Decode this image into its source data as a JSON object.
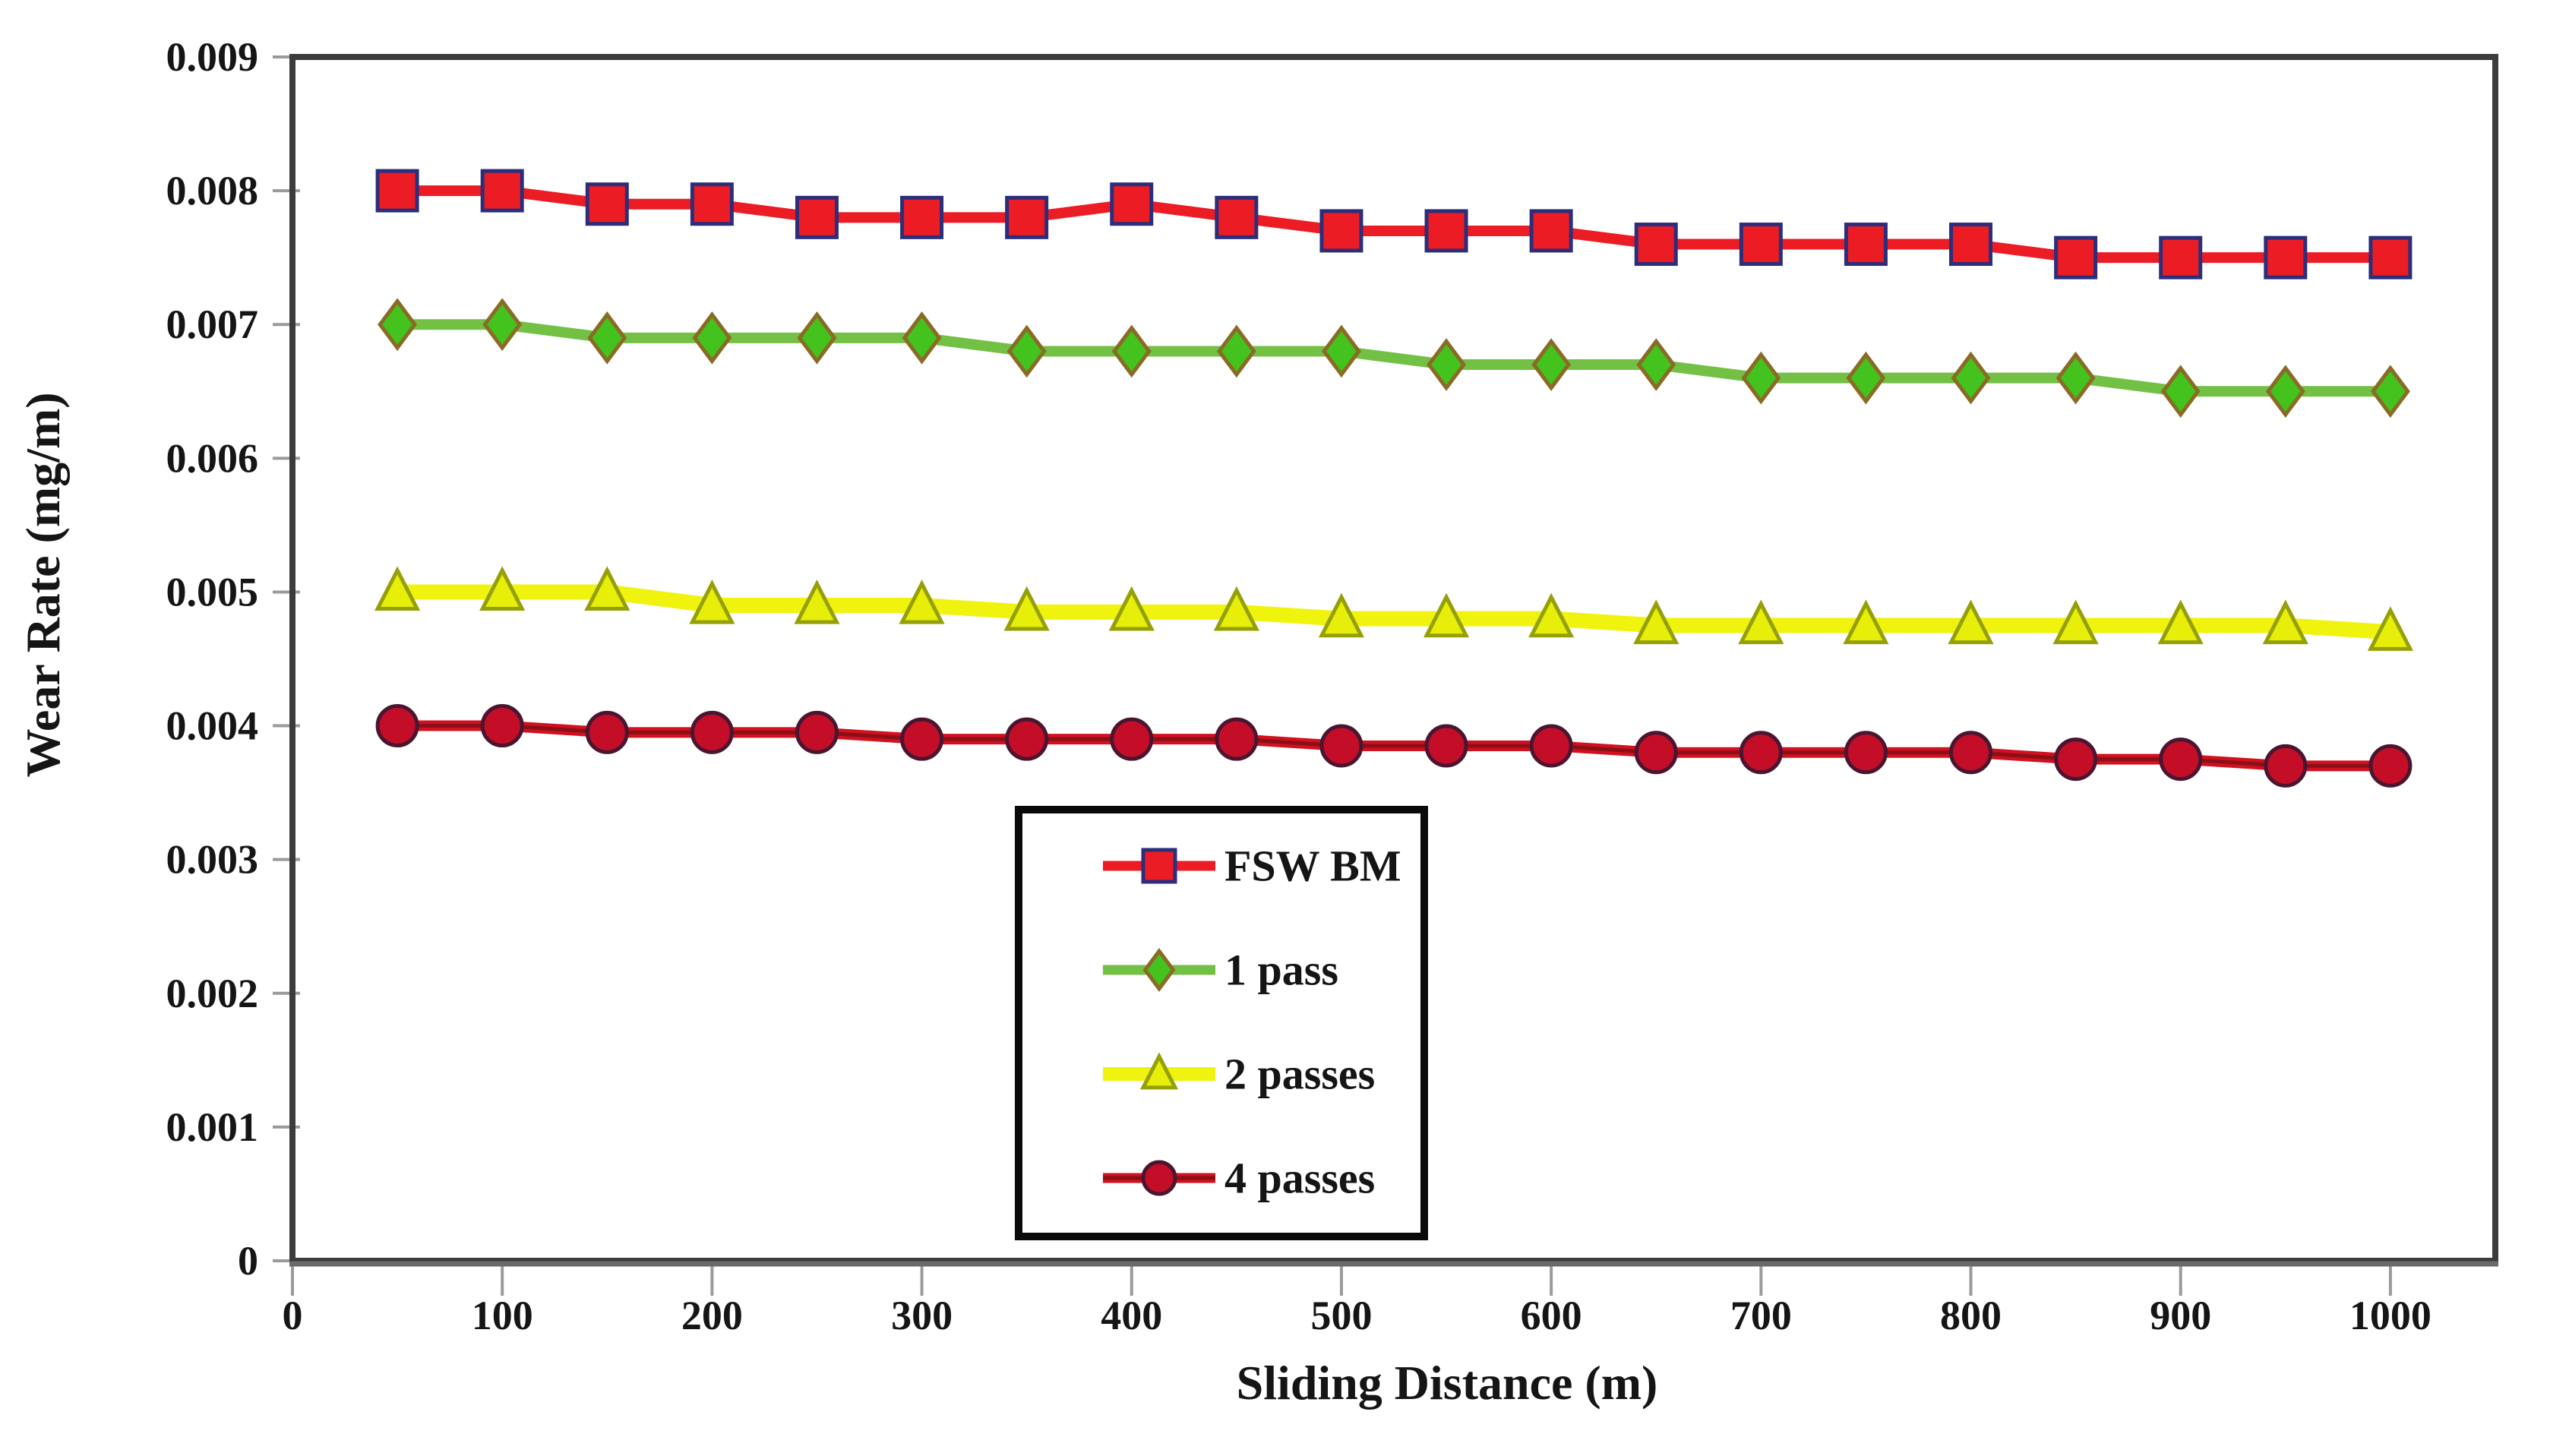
{
  "chart_data": {
    "type": "line",
    "title": "",
    "xlabel": "Sliding Distance (m)",
    "ylabel": "Wear Rate (mg/m)",
    "xlim": [
      0,
      1050
    ],
    "ylim": [
      0,
      0.009
    ],
    "xticks": [
      0,
      100,
      200,
      300,
      400,
      500,
      600,
      700,
      800,
      900,
      1000
    ],
    "yticks": [
      0,
      0.001,
      0.002,
      0.003,
      0.004,
      0.005,
      0.006,
      0.007,
      0.008,
      0.009
    ],
    "ytick_labels": [
      "0",
      "0.001",
      "0.002",
      "0.003",
      "0.004",
      "0.005",
      "0.006",
      "0.007",
      "0.008",
      "0.009"
    ],
    "grid": false,
    "legend_position": "inside-bottom-center",
    "legend_border": true,
    "x": [
      50,
      100,
      150,
      200,
      250,
      300,
      350,
      400,
      450,
      500,
      550,
      600,
      650,
      700,
      750,
      800,
      850,
      900,
      950,
      1000
    ],
    "series": [
      {
        "name": "FSW BM",
        "marker": "square",
        "line_color": "#EC1C24",
        "marker_fill": "#EC1C24",
        "marker_edge": "#2B2E7A",
        "values": [
          0.008,
          0.008,
          0.0079,
          0.0079,
          0.0078,
          0.0078,
          0.0078,
          0.0079,
          0.0078,
          0.0077,
          0.0077,
          0.0077,
          0.0076,
          0.0076,
          0.0076,
          0.0076,
          0.0075,
          0.0075,
          0.0075,
          0.0075
        ]
      },
      {
        "name": "1 pass",
        "marker": "diamond",
        "line_color": "#72C144",
        "marker_fill": "#44C21E",
        "marker_edge": "#8A6B25",
        "values": [
          0.007,
          0.007,
          0.0069,
          0.0069,
          0.0069,
          0.0069,
          0.0068,
          0.0068,
          0.0068,
          0.0068,
          0.0067,
          0.0067,
          0.0067,
          0.0066,
          0.0066,
          0.0066,
          0.0066,
          0.0065,
          0.0065,
          0.0065
        ]
      },
      {
        "name": "2 passes",
        "marker": "triangle",
        "line_color": "#F0F30D",
        "marker_fill": "#E7EE09",
        "marker_edge": "#95A007",
        "values": [
          0.005,
          0.005,
          0.005,
          0.0049,
          0.0049,
          0.0049,
          0.00485,
          0.00485,
          0.00485,
          0.0048,
          0.0048,
          0.0048,
          0.00475,
          0.00475,
          0.00475,
          0.00475,
          0.00475,
          0.00475,
          0.00475,
          0.0047
        ]
      },
      {
        "name": "4 passes",
        "marker": "circle",
        "line_color": "#D2101F",
        "line_core_color": "#8A1016",
        "marker_fill": "#C40E28",
        "marker_edge": "#4A1530",
        "values": [
          0.004,
          0.004,
          0.00395,
          0.00395,
          0.00395,
          0.0039,
          0.0039,
          0.0039,
          0.0039,
          0.00385,
          0.00385,
          0.00385,
          0.0038,
          0.0038,
          0.0038,
          0.0038,
          0.00375,
          0.00375,
          0.0037,
          0.0037
        ]
      }
    ]
  }
}
